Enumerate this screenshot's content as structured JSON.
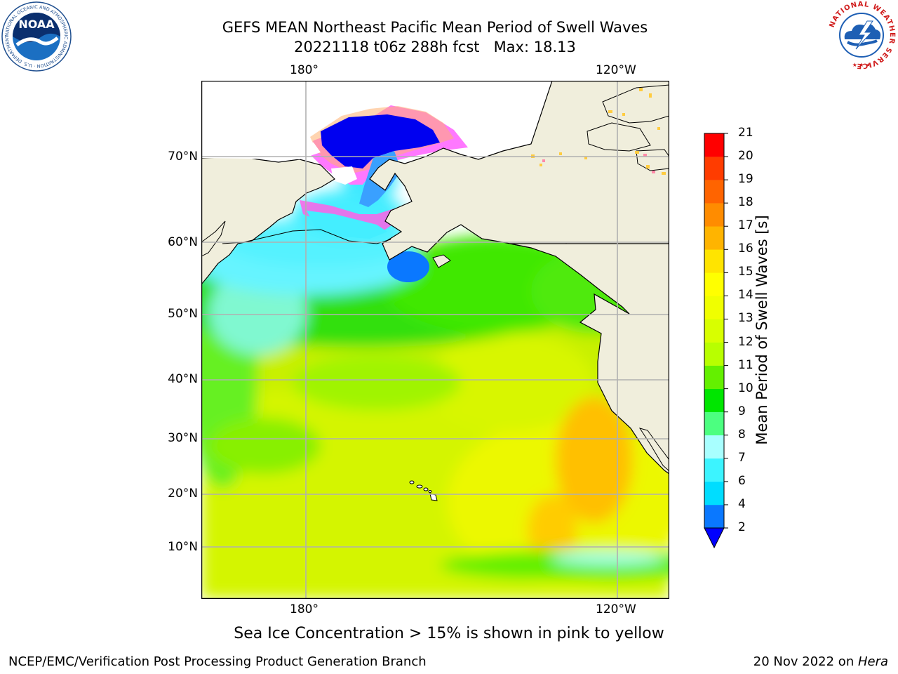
{
  "header": {
    "title_line1": "GEFS MEAN Northeast Pacific Mean Period of Swell Waves",
    "title_line2": "20221118 t06z 288h fcst   Max: 18.13"
  },
  "logos": {
    "left": "NOAA",
    "left_ring_text": "NATIONAL OCEANIC AND ATMOSPHERIC ADMINISTRATION · U.S. DEPARTMENT OF COMMERCE",
    "right_ring_text": "NATIONAL WEATHER SERVICE"
  },
  "map": {
    "lon_labels_top": [
      "180°",
      "120°W"
    ],
    "lon_labels_bottom": [
      "180°",
      "120°W"
    ],
    "lat_labels": [
      "70°N",
      "60°N",
      "50°N",
      "40°N",
      "30°N",
      "20°N",
      "10°N"
    ],
    "colors": {
      "land": "#f0eedc",
      "coast": "#000000",
      "grid": "#b0b0b0"
    }
  },
  "colorbar": {
    "label": "Mean Period of Swell Waves [s]",
    "ticks": [
      2,
      4,
      6,
      7,
      8,
      9,
      10,
      11,
      12,
      13,
      14,
      15,
      16,
      17,
      18,
      19,
      20,
      21
    ],
    "colors": [
      "#0a78ff",
      "#00ddff",
      "#3cf4ff",
      "#a8ffff",
      "#4cff80",
      "#00e600",
      "#64f000",
      "#b8ff00",
      "#d8ff00",
      "#f0ff00",
      "#ffff00",
      "#ffe400",
      "#ffb400",
      "#ff8c00",
      "#ff6400",
      "#ff3c00",
      "#ff0000"
    ],
    "extend_color": "#0000ff"
  },
  "note": "Sea Ice Concentration > 15% is shown in pink to yellow",
  "footer": {
    "left": "NCEP/EMC/Verification Post Processing Product Generation Branch",
    "right_date": "20 Nov 2022 on ",
    "right_host": "Hera"
  }
}
